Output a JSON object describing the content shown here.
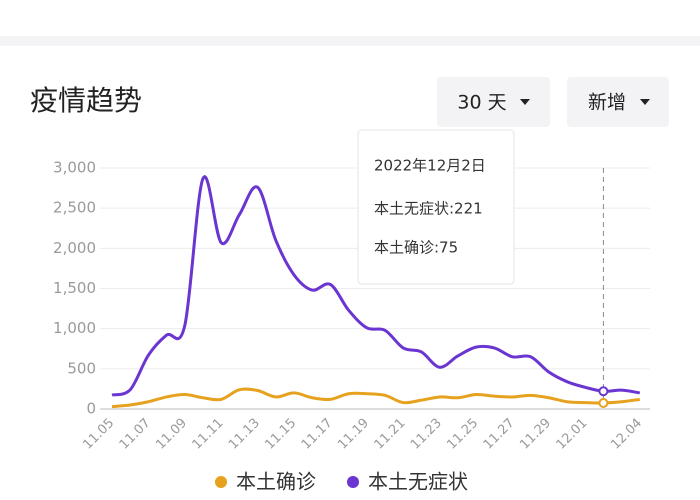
{
  "header": {
    "title": "疫情趋势",
    "range_button": "30 天",
    "mode_button": "新增"
  },
  "chart_data": {
    "type": "line",
    "categories": [
      "11.05",
      null,
      "11.07",
      null,
      "11.09",
      null,
      "11.11",
      null,
      "11.13",
      null,
      "11.15",
      null,
      "11.17",
      null,
      "11.19",
      null,
      "11.21",
      null,
      "11.23",
      null,
      "11.25",
      null,
      "11.27",
      null,
      "11.29",
      null,
      "12.01",
      null,
      null,
      "12.04"
    ],
    "series": [
      {
        "name": "本土确诊",
        "color": "#e6a21e",
        "values": [
          30,
          50,
          90,
          150,
          180,
          140,
          120,
          240,
          230,
          150,
          200,
          140,
          120,
          190,
          190,
          170,
          80,
          110,
          150,
          140,
          180,
          160,
          150,
          170,
          140,
          90,
          80,
          75,
          90,
          120
        ]
      },
      {
        "name": "本土无症状",
        "color": "#6a35d0",
        "values": [
          175,
          240,
          670,
          920,
          1040,
          2870,
          2070,
          2420,
          2760,
          2100,
          1670,
          1480,
          1550,
          1230,
          1010,
          980,
          760,
          710,
          520,
          660,
          770,
          760,
          650,
          650,
          460,
          340,
          270,
          221,
          235,
          200
        ]
      }
    ],
    "ylim": [
      0,
      3000
    ],
    "yticks": [
      0,
      500,
      {
        "value": 1000,
        "label": "1,000"
      },
      {
        "value": 1500,
        "label": "1,500"
      },
      {
        "value": 2000,
        "label": "2,000"
      },
      {
        "value": 2500,
        "label": "2,500"
      },
      {
        "value": 3000,
        "label": "3,000"
      }
    ],
    "grid": true,
    "tooltip": {
      "index": 27,
      "title": "2022年12月2日",
      "lines": [
        "本土无症状:221",
        "本土确诊:75"
      ]
    }
  }
}
